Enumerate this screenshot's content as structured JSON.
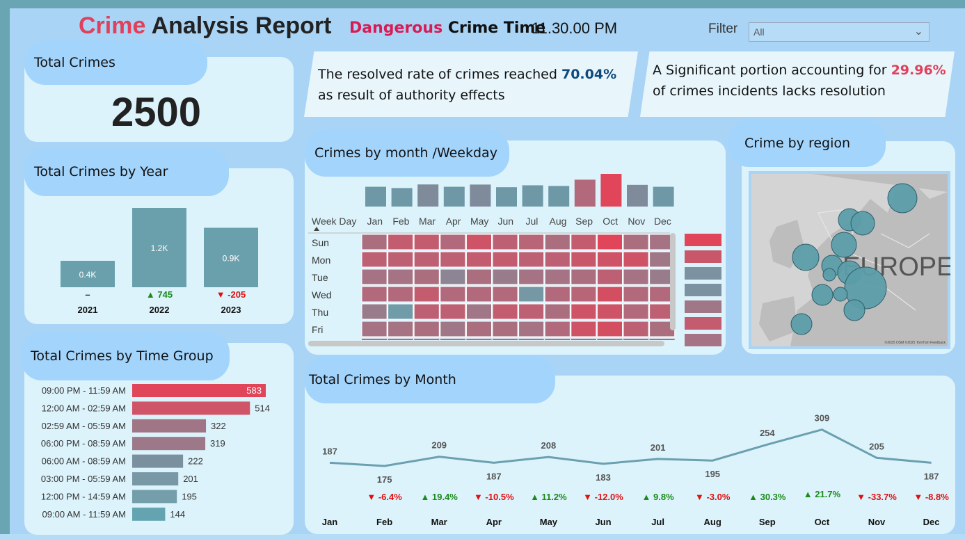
{
  "header": {
    "title_part1": "Crime",
    "title_part2": "Analysis Report",
    "subtitle_part1": "Dangerous",
    "subtitle_part2": "Crime Time",
    "subtitle_time": "11.30.00 PM",
    "filter_label": "Filter",
    "filter_value": "All",
    "chevron_icon": "chevron-down-icon"
  },
  "kpi": {
    "title": "Total Crimes",
    "value": "2500"
  },
  "insights": {
    "resolved_text1": "The resolved rate of crimes reached",
    "resolved_value": "70.04%",
    "resolved_text2": "as result of authority effects",
    "unresolved_text1": "A Significant portion accounting for",
    "unresolved_value": "29.96%",
    "unresolved_text2": "of crimes incidents lacks resolution"
  },
  "colors": {
    "bar_teal": "#6aa0ac",
    "bar_red": "#e0455a",
    "up_green": "#1a8a1a",
    "down_red": "#e01010"
  },
  "chart_data": [
    {
      "type": "bar",
      "title": "Total Crimes by Year",
      "categories": [
        "2021",
        "2022",
        "2023"
      ],
      "values": [
        0.4,
        1.2,
        0.9
      ],
      "value_labels": [
        "0.4K",
        "1.2K",
        "0.9K"
      ],
      "change_labels": [
        "–",
        "▲ 745",
        "▼ -205"
      ],
      "change_dirs": [
        "none",
        "up",
        "down"
      ]
    },
    {
      "type": "bar",
      "orientation": "horizontal",
      "title": "Total Crimes by Time Group",
      "categories": [
        "09:00 PM - 11:59 AM",
        "12:00 AM - 02:59 AM",
        "02:59 AM - 05:59 AM",
        "06:00 PM - 08:59 AM",
        "06:00 AM - 08:59 AM",
        "03:00 PM - 05:59 AM",
        "12:00 PM - 14:59 AM",
        "09:00 AM - 11:59 AM"
      ],
      "values": [
        583,
        514,
        322,
        319,
        222,
        201,
        195,
        144
      ],
      "colors": [
        "#e0455a",
        "#d05468",
        "#a07585",
        "#9c7888",
        "#7a909e",
        "#7998a6",
        "#759eab",
        "#64a4b0"
      ]
    },
    {
      "type": "heatmap",
      "title": "Crimes by month /Weekday",
      "row_header": "Week Day",
      "columns": [
        "Jan",
        "Feb",
        "Mar",
        "Apr",
        "May",
        "Jun",
        "Jul",
        "Aug",
        "Sep",
        "Oct",
        "Nov",
        "Dec"
      ],
      "rows": [
        "Sun",
        "Mon",
        "Tue",
        "Wed",
        "Thu",
        "Fri"
      ],
      "column_totals": [
        187,
        175,
        209,
        187,
        208,
        183,
        201,
        195,
        254,
        309,
        205,
        187
      ],
      "cell_levels": [
        [
          0.55,
          0.75,
          0.75,
          0.6,
          0.85,
          0.7,
          0.65,
          0.55,
          0.75,
          1.0,
          0.55,
          0.5
        ],
        [
          0.7,
          0.7,
          0.7,
          0.7,
          0.75,
          0.75,
          0.7,
          0.7,
          0.8,
          0.85,
          0.85,
          0.45
        ],
        [
          0.5,
          0.5,
          0.55,
          0.3,
          0.55,
          0.4,
          0.5,
          0.5,
          0.55,
          0.7,
          0.5,
          0.4
        ],
        [
          0.6,
          0.6,
          0.75,
          0.6,
          0.6,
          0.6,
          0.1,
          0.6,
          0.65,
          0.9,
          0.6,
          0.6
        ],
        [
          0.4,
          0.05,
          0.7,
          0.7,
          0.45,
          0.75,
          0.7,
          0.55,
          0.85,
          0.85,
          0.6,
          0.7
        ],
        [
          0.5,
          0.5,
          0.55,
          0.45,
          0.55,
          0.55,
          0.5,
          0.6,
          0.85,
          0.9,
          0.7,
          0.55
        ]
      ],
      "legend_levels": [
        1.0,
        0.8,
        0.15,
        0.15,
        0.45,
        0.75,
        0.5
      ]
    },
    {
      "type": "scatter",
      "title": "Crime by region",
      "map_label": "EUROPE",
      "attribution": "©2025 OSM ©2025 TomTom Feedback"
    },
    {
      "type": "line",
      "title": "Total Crimes by Month",
      "categories": [
        "Jan",
        "Feb",
        "Mar",
        "Apr",
        "May",
        "Jun",
        "Jul",
        "Aug",
        "Sep",
        "Oct",
        "Nov",
        "Dec"
      ],
      "values": [
        187,
        175,
        209,
        187,
        208,
        183,
        201,
        195,
        254,
        309,
        205,
        187
      ],
      "change_labels": [
        "",
        "▼ -6.4%",
        "▲ 19.4%",
        "▼ -10.5%",
        "▲ 11.2%",
        "▼ -12.0%",
        "▲ 9.8%",
        "▼ -3.0%",
        "▲ 30.3%",
        "▲ 21.7%",
        "▼ -33.7%",
        "▼ -8.8%"
      ],
      "change_dirs": [
        "none",
        "down",
        "up",
        "down",
        "up",
        "down",
        "up",
        "down",
        "up",
        "up",
        "down",
        "down"
      ]
    }
  ]
}
